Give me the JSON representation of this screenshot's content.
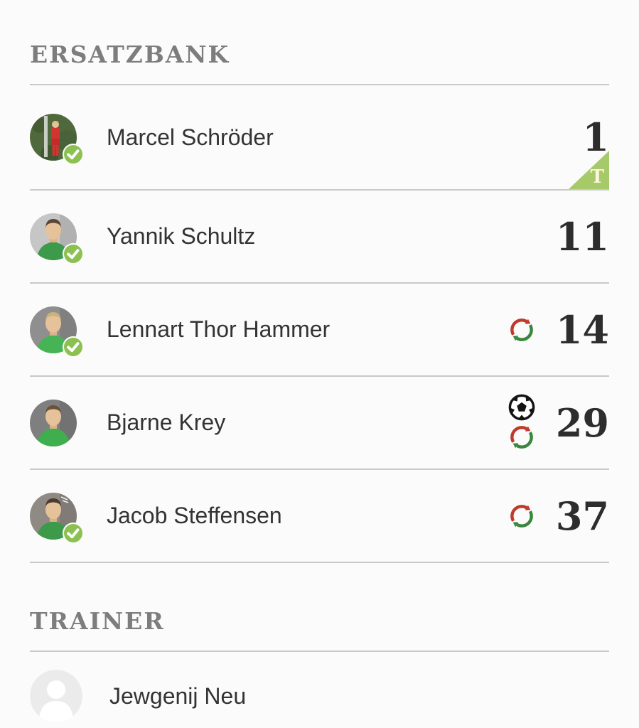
{
  "ersatzbank": {
    "title": "ERSATZBANK",
    "players": [
      {
        "name": "Marcel Schröder",
        "number": "1",
        "confirmed": true,
        "keeper_badge": "T",
        "icons": [],
        "avatar": {
          "type": "keeper-photo",
          "bg": "#50693c",
          "jersey": "#d23430"
        }
      },
      {
        "name": "Yannik Schultz",
        "number": "11",
        "confirmed": true,
        "keeper_badge": "",
        "icons": [],
        "avatar": {
          "type": "portrait-photo",
          "bg": "#c6c6c6",
          "hair": "#5a4632",
          "jersey": "#3d9a4b"
        }
      },
      {
        "name": "Lennart Thor Hammer",
        "number": "14",
        "confirmed": true,
        "keeper_badge": "",
        "icons": [
          "substitution"
        ],
        "avatar": {
          "type": "portrait-photo",
          "bg": "#8f8f8f",
          "hair": "#c9b27e",
          "jersey": "#46b455"
        }
      },
      {
        "name": "Bjarne Krey",
        "number": "29",
        "confirmed": false,
        "keeper_badge": "",
        "icons": [
          "goal",
          "substitution"
        ],
        "avatar": {
          "type": "portrait-photo",
          "bg": "#7f7f7f",
          "hair": "#6b5339",
          "jersey": "#3fae4e"
        }
      },
      {
        "name": "Jacob Steffensen",
        "number": "37",
        "confirmed": true,
        "keeper_badge": "",
        "icons": [
          "substitution"
        ],
        "avatar": {
          "type": "portrait-photo",
          "bg": "#8f8a84",
          "hair": "#4a3b2e",
          "jersey": "#3d9a4b",
          "marks": true
        }
      }
    ]
  },
  "trainer": {
    "title": "TRAINER",
    "name": "Jewgenij Neu",
    "avatar": {
      "type": "placeholder",
      "bg": "#ebebeb",
      "silhouette": "#ffffff"
    }
  },
  "icon_legend": {
    "goal": "soccer-ball-icon",
    "substitution": "substitution-arrows-icon",
    "confirmed": "confirmed-check-icon",
    "keeper_badge": "goalkeeper-triangle-badge"
  },
  "colors": {
    "accent_green": "#8cc152",
    "badge_triangle_green": "#a6ca69",
    "substitution_red": "#c0392b",
    "substitution_green": "#38873c",
    "ball_black": "#141414",
    "divider": "#c9c9c9",
    "heading_text": "#7d7d7d",
    "name_text": "#333333",
    "number_text": "#2d2d2d"
  }
}
